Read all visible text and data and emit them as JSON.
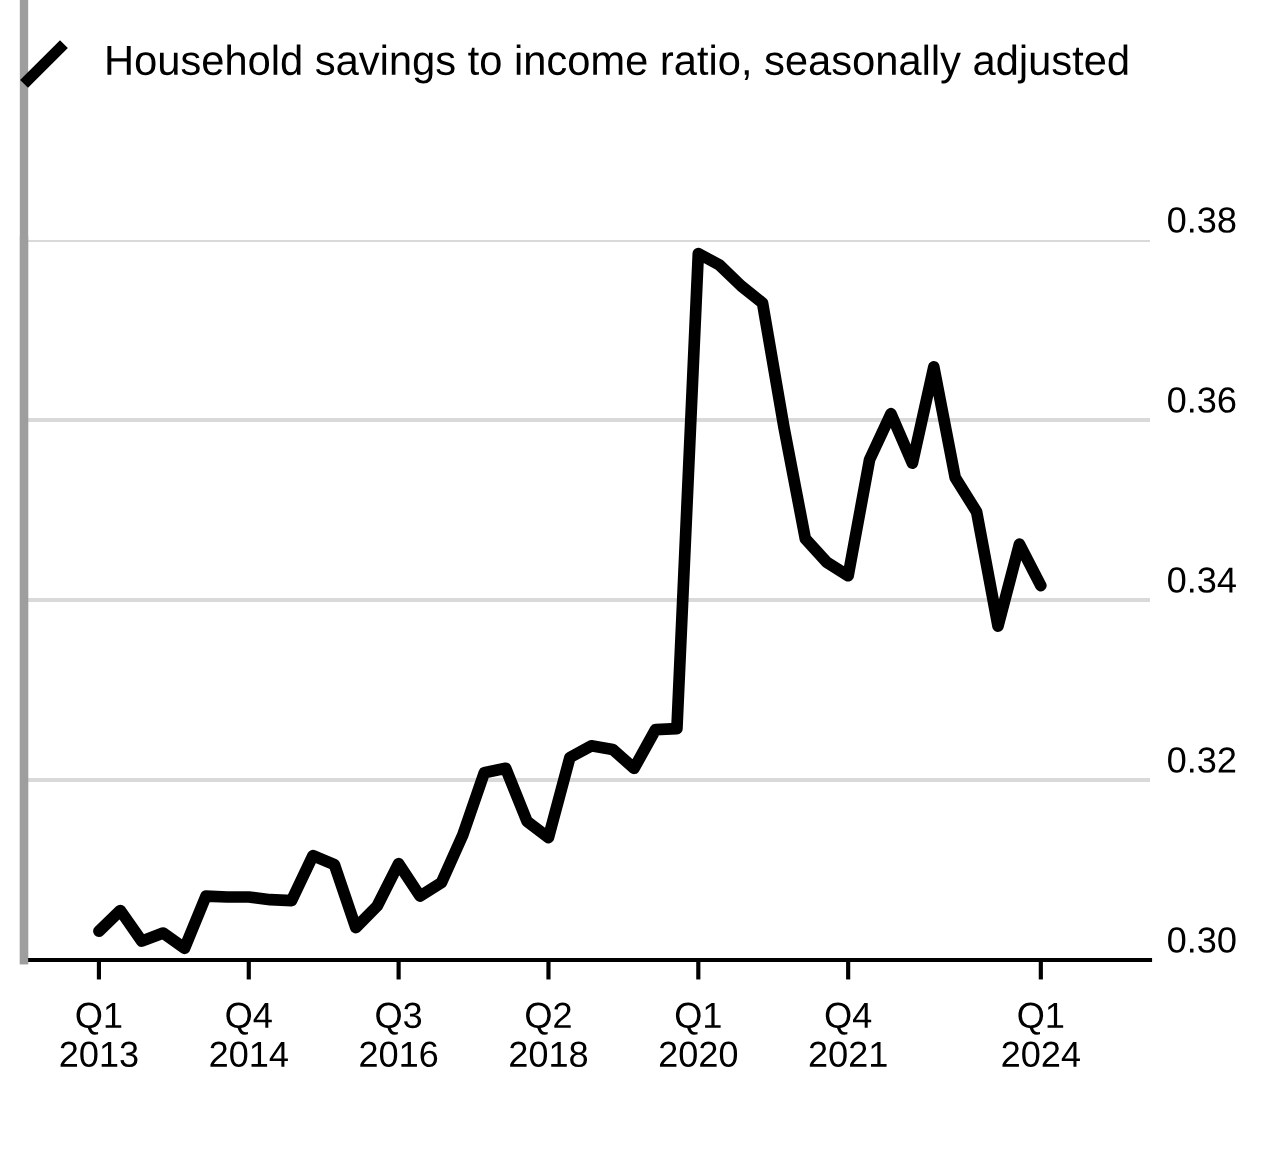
{
  "chart_data": {
    "type": "line",
    "categories": [
      "Q1\n2013",
      null,
      null,
      null,
      null,
      null,
      null,
      "Q4\n2014",
      null,
      null,
      null,
      null,
      null,
      null,
      "Q3\n2016",
      null,
      null,
      null,
      null,
      null,
      null,
      "Q2\n2018",
      null,
      null,
      null,
      null,
      null,
      null,
      "Q1\n2020",
      null,
      null,
      null,
      null,
      null,
      null,
      "Q4\n2021",
      null,
      null,
      null,
      null,
      null,
      null,
      null,
      null,
      "Q1\n2024"
    ],
    "series": [
      {
        "name": "Household savings to income ratio, seasonally adjusted",
        "color": "#000000",
        "values": [
          0.3032,
          0.3055,
          0.3021,
          0.303,
          0.3013,
          0.3071,
          0.307,
          0.307,
          0.3067,
          0.3066,
          0.3116,
          0.3106,
          0.3036,
          0.306,
          0.3107,
          0.3071,
          0.3086,
          0.3139,
          0.3208,
          0.3213,
          0.3154,
          0.3136,
          0.3225,
          0.3238,
          0.3234,
          0.3213,
          0.3256,
          0.3257,
          0.3785,
          0.3772,
          0.3749,
          0.373,
          0.3592,
          0.3468,
          0.3442,
          0.3427,
          0.3556,
          0.3607,
          0.3552,
          0.3659,
          0.3536,
          0.3498,
          0.3371,
          0.3462,
          0.3416
        ]
      }
    ],
    "ylim": [
      0.3,
      0.38
    ],
    "yticks": [
      {
        "value": 0.3,
        "label": "0.30"
      },
      {
        "value": 0.32,
        "label": "0.32"
      },
      {
        "value": 0.34,
        "label": "0.34"
      },
      {
        "value": 0.36,
        "label": "0.36"
      },
      {
        "value": 0.38,
        "label": "0.38"
      }
    ],
    "grid": "y",
    "legend": "top left",
    "marker": "none",
    "line_style": "solid"
  }
}
